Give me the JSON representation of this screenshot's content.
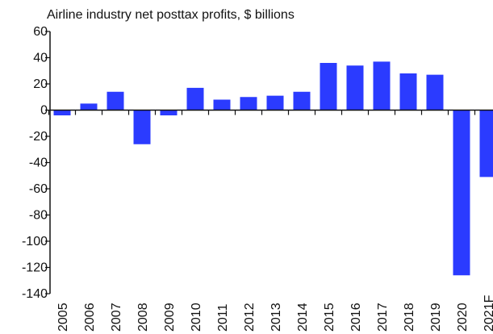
{
  "chart_data": {
    "type": "bar",
    "title": "Airline industry net posttax profits, $ billions",
    "xlabel": "",
    "ylabel": "",
    "categories": [
      "2005",
      "2006",
      "2007",
      "2008",
      "2009",
      "2010",
      "2011",
      "2012",
      "2013",
      "2014",
      "2015",
      "2016",
      "2017",
      "2018",
      "2019",
      "2020",
      "2021F"
    ],
    "values": [
      -4,
      5,
      14,
      -26,
      -4,
      17,
      8,
      10,
      11,
      14,
      36,
      34,
      37,
      28,
      27,
      -126,
      -51
    ],
    "ylim": [
      -140,
      60
    ],
    "yticks": [
      60,
      40,
      20,
      0,
      -20,
      -40,
      -60,
      -80,
      -100,
      -120,
      -140
    ],
    "ytick_labels": [
      "60",
      "40",
      "20",
      "0",
      "-20",
      "-40",
      "-60",
      "-80",
      "-100",
      "-120",
      "-140"
    ],
    "grid": false,
    "bar_color": "#2b3bff"
  }
}
